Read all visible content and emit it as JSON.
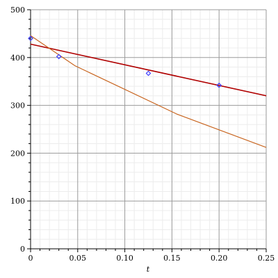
{
  "chart_data": {
    "type": "line",
    "title": "",
    "xlabel": "t",
    "ylabel": "",
    "xlim": [
      0,
      0.25
    ],
    "ylim": [
      0,
      500
    ],
    "grid": true,
    "x_ticks": [
      0,
      0.05,
      0.1,
      0.15,
      0.2,
      0.25
    ],
    "x_tick_labels": [
      "0",
      "0.05",
      "0.10",
      "0.15",
      "0.20",
      "0.25"
    ],
    "y_ticks": [
      0,
      100,
      200,
      300,
      400,
      500
    ],
    "y_tick_labels": [
      "0",
      "100",
      "200",
      "300",
      "400",
      "500"
    ],
    "series": [
      {
        "kind": "line",
        "color": "#b00000",
        "x": [
          0,
          0.25
        ],
        "y": [
          428,
          320
        ]
      },
      {
        "kind": "line",
        "color": "#c8641e",
        "x": [
          0,
          0.047,
          0.155,
          0.25
        ],
        "y": [
          446,
          383,
          282,
          212
        ]
      },
      {
        "kind": "scatter",
        "marker": "diamond",
        "color": "#3c3cff",
        "x": [
          0,
          0.03,
          0.125,
          0.2
        ],
        "y": [
          440,
          402,
          367,
          342
        ]
      }
    ]
  }
}
